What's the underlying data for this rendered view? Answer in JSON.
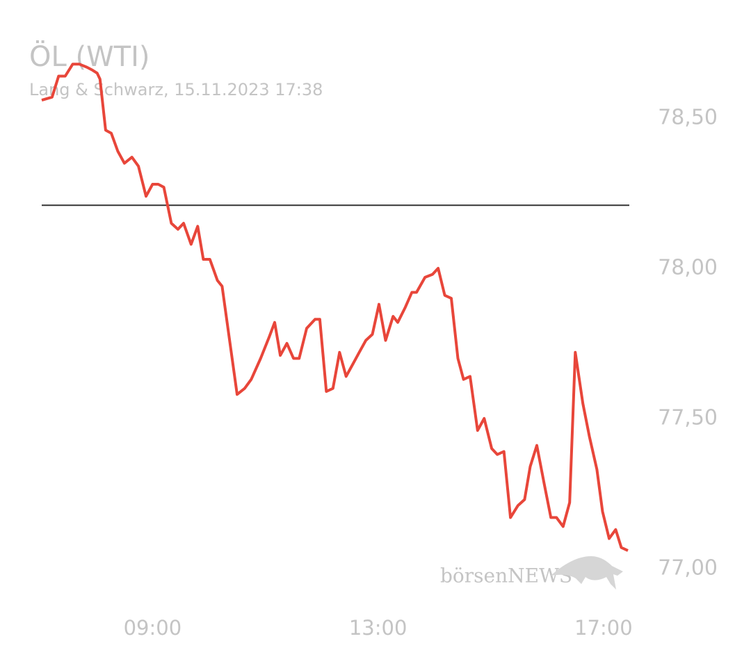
{
  "chart_data": {
    "type": "line",
    "title": "ÖL (WTI)",
    "subtitle": "Lang & Schwarz, 15.11.2023 17:38",
    "watermark": "börsenNEWS",
    "x": [
      "07:02",
      "07:13",
      "07:20",
      "07:27",
      "07:35",
      "07:42",
      "07:50",
      "07:56",
      "08:01",
      "08:04",
      "08:10",
      "08:16",
      "08:23",
      "08:30",
      "08:38",
      "08:45",
      "08:53",
      "09:00",
      "09:06",
      "09:12",
      "09:20",
      "09:27",
      "09:33",
      "09:41",
      "09:48",
      "09:54",
      "10:01",
      "10:09",
      "10:14",
      "10:22",
      "10:30",
      "10:38",
      "10:45",
      "10:55",
      "11:04",
      "11:10",
      "11:16",
      "11:23",
      "11:30",
      "11:36",
      "11:44",
      "11:53",
      "11:58",
      "12:05",
      "12:12",
      "12:19",
      "12:26",
      "12:33",
      "12:40",
      "12:47",
      "12:54",
      "13:01",
      "13:08",
      "13:16",
      "13:21",
      "13:29",
      "13:36",
      "13:41",
      "13:50",
      "13:58",
      "14:04",
      "14:11",
      "14:18",
      "14:25",
      "14:31",
      "14:38",
      "14:46",
      "14:53",
      "15:01",
      "15:07",
      "15:14",
      "15:21",
      "15:29",
      "15:36",
      "15:42",
      "15:49",
      "15:57",
      "16:04",
      "16:10",
      "16:17",
      "16:24",
      "16:30",
      "16:38",
      "16:45",
      "16:53",
      "16:59",
      "17:06",
      "17:13",
      "17:19",
      "17:26"
    ],
    "series": [
      {
        "color": "#e8463a",
        "values": [
          78.56,
          78.57,
          78.64,
          78.64,
          78.68,
          78.68,
          78.67,
          78.66,
          78.65,
          78.63,
          78.46,
          78.45,
          78.39,
          78.35,
          78.37,
          78.34,
          78.24,
          78.28,
          78.28,
          78.27,
          78.15,
          78.13,
          78.15,
          78.08,
          78.14,
          78.03,
          78.03,
          77.96,
          77.94,
          77.76,
          77.58,
          77.6,
          77.63,
          77.7,
          77.77,
          77.82,
          77.71,
          77.75,
          77.7,
          77.7,
          77.8,
          77.83,
          77.83,
          77.59,
          77.6,
          77.72,
          77.64,
          77.68,
          77.72,
          77.76,
          77.78,
          77.88,
          77.76,
          77.84,
          77.82,
          77.87,
          77.92,
          77.92,
          77.97,
          77.98,
          78.0,
          77.91,
          77.9,
          77.7,
          77.63,
          77.64,
          77.46,
          77.5,
          77.4,
          77.38,
          77.39,
          77.17,
          77.21,
          77.23,
          77.34,
          77.41,
          77.28,
          77.17,
          77.17,
          77.14,
          77.22,
          77.72,
          77.55,
          77.44,
          77.33,
          77.19,
          77.1,
          77.13,
          77.07,
          77.06
        ]
      }
    ],
    "reference_line": 78.21,
    "reference_color": "#333333",
    "xlim": [
      "07:02",
      "17:26"
    ],
    "xticks": [
      "09:00",
      "13:00",
      "17:00"
    ],
    "ylim": [
      76.9,
      78.75
    ],
    "yticks": [
      {
        "value": 77.0,
        "label": "77,00"
      },
      {
        "value": 77.5,
        "label": "77,50"
      },
      {
        "value": 78.0,
        "label": "78,00"
      },
      {
        "value": 78.5,
        "label": "78,50"
      }
    ],
    "grid": false
  }
}
